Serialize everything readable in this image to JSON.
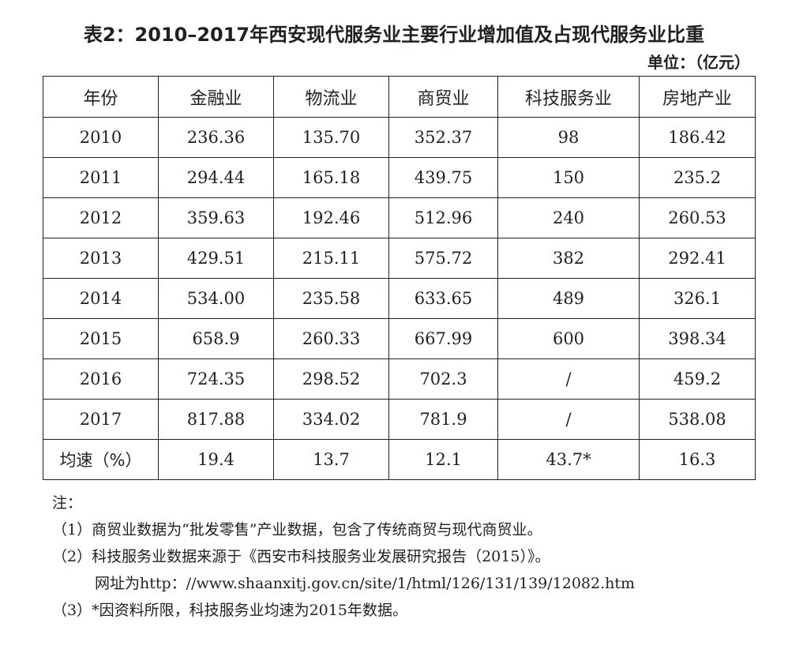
{
  "title": "表2：2010–2017年西安现代服务业主要行业增加值及占现代服务业比重",
  "unit": "单位：（亿元）",
  "table": {
    "headers": [
      "年份",
      "金融业",
      "物流业",
      "商贸业",
      "科技服务业",
      "房地产业"
    ],
    "rows": [
      [
        "2010",
        "236.36",
        "135.70",
        "352.37",
        "98",
        "186.42"
      ],
      [
        "2011",
        "294.44",
        "165.18",
        "439.75",
        "150",
        "235.2"
      ],
      [
        "2012",
        "359.63",
        "192.46",
        "512.96",
        "240",
        "260.53"
      ],
      [
        "2013",
        "429.51",
        "215.11",
        "575.72",
        "382",
        "292.41"
      ],
      [
        "2014",
        "534.00",
        "235.58",
        "633.65",
        "489",
        "326.1"
      ],
      [
        "2015",
        "658.9",
        "260.33",
        "667.99",
        "600",
        "398.34"
      ],
      [
        "2016",
        "724.35",
        "298.52",
        "702.3",
        "/",
        "459.2"
      ],
      [
        "2017",
        "817.88",
        "334.02",
        "781.9",
        "/",
        "538.08"
      ],
      [
        "均速（%）",
        "19.4",
        "13.7",
        "12.1",
        "43.7*",
        "16.3"
      ]
    ]
  },
  "notes": [
    "注：",
    "（1）商贸业数据为“批发零售”产业数据，包含了传统商贸与现代商贸业。",
    "（2）科技服务业数据来源于《西安市科技服务业发展研究报告（2015）》。",
    "网址为http：//www.shaanxitj.gov.cn/site/1/html/126/131/139/12082.htm",
    "（3）*因资料所限，科技服务业均速为2015年数据。"
  ]
}
